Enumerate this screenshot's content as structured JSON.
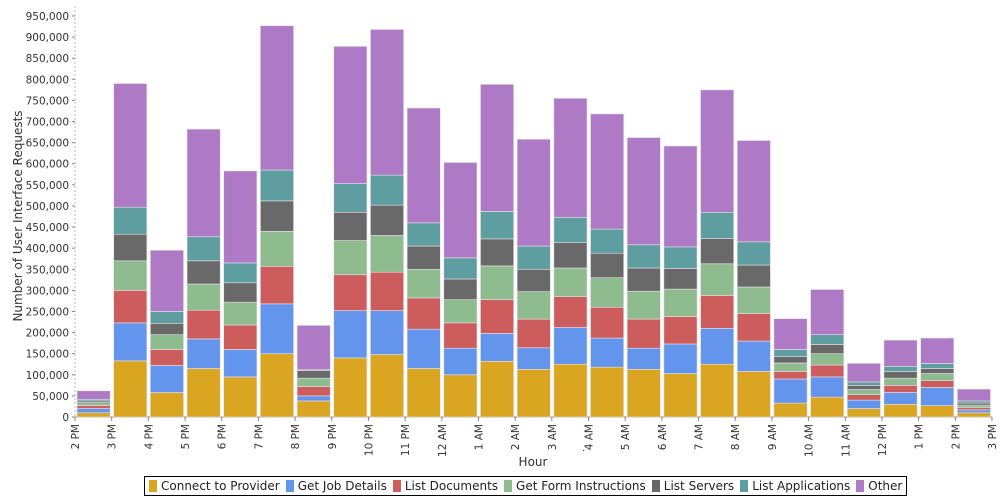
{
  "chart_data": {
    "type": "bar",
    "stacked": true,
    "title": "",
    "xlabel": "Hour",
    "ylabel": "Number of User Interface Requests",
    "ylim": [
      0,
      950000
    ],
    "yticks": [
      0,
      50000,
      100000,
      150000,
      200000,
      250000,
      300000,
      350000,
      400000,
      450000,
      500000,
      550000,
      600000,
      650000,
      700000,
      750000,
      800000,
      850000,
      900000,
      950000
    ],
    "ytick_labels": [
      "0",
      "50,000",
      "100,000",
      "150,000",
      "200,000",
      "250,000",
      "300,000",
      "350,000",
      "400,000",
      "450,000",
      "500,000",
      "550,000",
      "600,000",
      "650,000",
      "700,000",
      "750,000",
      "800,000",
      "850,000",
      "900,000",
      "950,000"
    ],
    "xtick_labels": [
      "2 PM",
      "3 PM",
      "4 PM",
      "5 PM",
      "6 PM",
      "7 PM",
      "8 PM",
      "9 PM",
      "10 PM",
      "11 PM",
      "12 AM",
      "1 AM",
      "2 AM",
      "3 AM",
      "4 AM",
      "5 AM",
      "6 AM",
      "7 AM",
      "8 AM",
      "9 AM",
      "10 AM",
      "11 AM",
      "12 PM",
      "1 PM",
      "2 PM",
      "3 PM"
    ],
    "categories": [
      "2 PM",
      "3 PM",
      "4 PM",
      "5 PM",
      "6 PM",
      "7 PM",
      "8 PM",
      "9 PM",
      "10 PM",
      "11 PM",
      "12 AM",
      "1 AM",
      "2 AM",
      "3 AM",
      "4 AM",
      "5 AM",
      "6 AM",
      "7 AM",
      "8 AM",
      "9 AM",
      "10 AM",
      "11 AM",
      "12 PM",
      "1 PM",
      "2 PM"
    ],
    "grid": false,
    "legend_position": "bottom",
    "series": [
      {
        "name": "Connect to Provider",
        "color": "#DAA520",
        "values": [
          10000,
          133000,
          58000,
          115000,
          95000,
          150000,
          38000,
          140000,
          148000,
          115000,
          100000,
          132000,
          113000,
          125000,
          118000,
          113000,
          103000,
          125000,
          108000,
          33000,
          47000,
          20000,
          30000,
          27000,
          10000
        ]
      },
      {
        "name": "Get Job Details",
        "color": "#6495ED",
        "values": [
          10000,
          90000,
          64000,
          70000,
          65000,
          118000,
          12000,
          112000,
          104000,
          93000,
          63000,
          66000,
          51000,
          87000,
          69000,
          50000,
          70000,
          85000,
          72000,
          57000,
          48000,
          20000,
          28000,
          43000,
          7000
        ]
      },
      {
        "name": "List Documents",
        "color": "#CD5C5C",
        "values": [
          7000,
          77000,
          38000,
          68000,
          58000,
          89000,
          22000,
          85000,
          91000,
          74000,
          60000,
          80000,
          68000,
          73000,
          73000,
          69000,
          65000,
          78000,
          65000,
          18000,
          28000,
          13000,
          17000,
          16000,
          5000
        ]
      },
      {
        "name": "Get Form Instructions",
        "color": "#8FBC8F",
        "values": [
          7000,
          70000,
          35000,
          62000,
          54000,
          83000,
          20000,
          81000,
          87000,
          68000,
          55000,
          80000,
          65000,
          68000,
          70000,
          66000,
          65000,
          75000,
          63000,
          20000,
          27000,
          12000,
          17000,
          17000,
          6000
        ]
      },
      {
        "name": "List Servers",
        "color": "#696969",
        "values": [
          4000,
          63000,
          27000,
          55000,
          46000,
          72000,
          18000,
          67000,
          72000,
          55000,
          49000,
          64000,
          53000,
          60000,
          58000,
          55000,
          49000,
          60000,
          52000,
          15000,
          22000,
          10000,
          16000,
          12000,
          5000
        ]
      },
      {
        "name": "List Applications",
        "color": "#5F9EA0",
        "values": [
          4000,
          64000,
          28000,
          57000,
          47000,
          73000,
          2000,
          68000,
          71000,
          55000,
          50000,
          65000,
          55000,
          60000,
          57000,
          55000,
          51000,
          62000,
          55000,
          17000,
          23000,
          8000,
          12000,
          12000,
          5000
        ]
      },
      {
        "name": "Other",
        "color": "#AF7AC5",
        "values": [
          20000,
          293000,
          145000,
          255000,
          218000,
          342000,
          105000,
          325000,
          345000,
          272000,
          226000,
          301000,
          253000,
          282000,
          273000,
          254000,
          239000,
          290000,
          240000,
          73000,
          107000,
          44000,
          62000,
          60000,
          28000
        ]
      }
    ]
  },
  "extra_marks": {
    "stray_dot_below_axis": "."
  }
}
